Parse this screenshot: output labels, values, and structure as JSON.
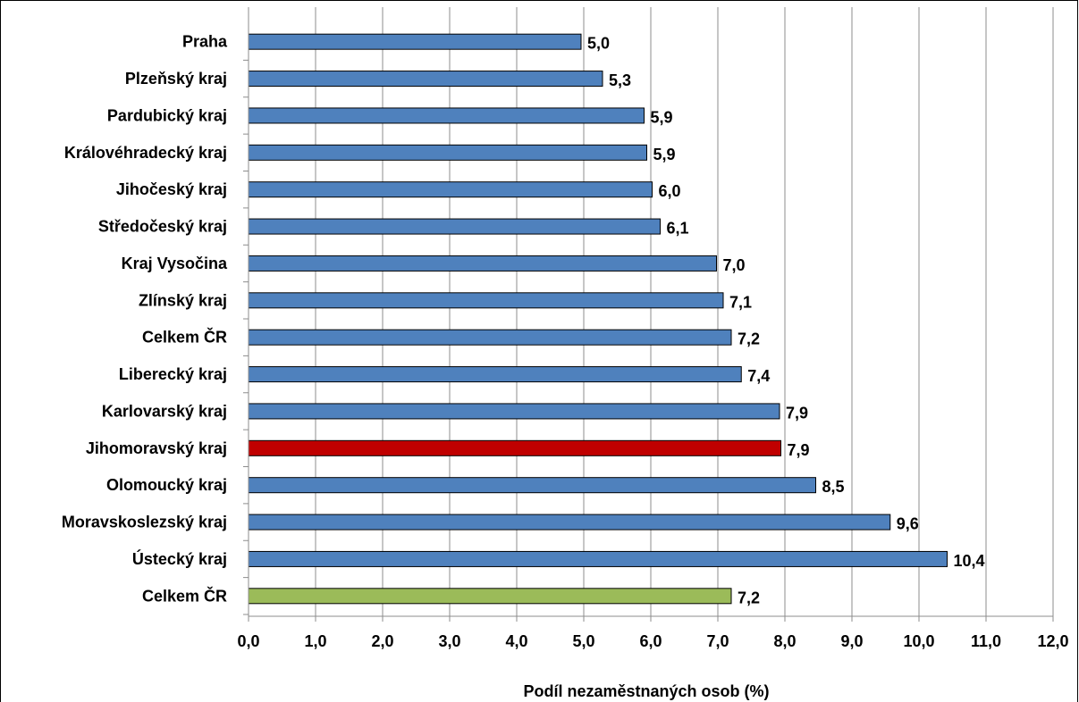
{
  "chart_data": {
    "type": "bar",
    "orientation": "horizontal",
    "categories": [
      "Praha",
      "Plzeňský kraj",
      "Pardubický kraj",
      "Královéhradecký kraj",
      "Jihočeský kraj",
      "Středočeský kraj",
      "Kraj Vysočina",
      "Zlínský kraj",
      "Celkem ČR",
      "Liberecký kraj",
      "Karlovarský kraj",
      "Jihomoravský kraj",
      "Olomoucký kraj",
      "Moravskoslezský kraj",
      "Ústecký kraj",
      "Celkem ČR"
    ],
    "values": [
      4.96,
      5.28,
      5.9,
      5.94,
      6.02,
      6.14,
      6.98,
      7.08,
      7.2,
      7.35,
      7.92,
      7.94,
      8.46,
      9.57,
      10.42,
      7.2
    ],
    "value_labels": [
      "5,0",
      "5,3",
      "5,9",
      "5,9",
      "6,0",
      "6,1",
      "7,0",
      "7,1",
      "7,2",
      "7,4",
      "7,9",
      "7,9",
      "8,5",
      "9,6",
      "10,4",
      "7,2"
    ],
    "bar_colors": [
      "#4f81bd",
      "#4f81bd",
      "#4f81bd",
      "#4f81bd",
      "#4f81bd",
      "#4f81bd",
      "#4f81bd",
      "#4f81bd",
      "#4f81bd",
      "#4f81bd",
      "#4f81bd",
      "#c00000",
      "#4f81bd",
      "#4f81bd",
      "#4f81bd",
      "#9bbb59"
    ],
    "xlabel": "Podíl nezaměstnaných osob (%)",
    "xlim": [
      0,
      12
    ],
    "xticks": [
      0,
      1,
      2,
      3,
      4,
      5,
      6,
      7,
      8,
      9,
      10,
      11,
      12
    ],
    "xtick_labels": [
      "0,0",
      "1,0",
      "2,0",
      "3,0",
      "4,0",
      "5,0",
      "6,0",
      "7,0",
      "8,0",
      "9,0",
      "10,0",
      "11,0",
      "12,0"
    ],
    "grid": "vertical"
  }
}
